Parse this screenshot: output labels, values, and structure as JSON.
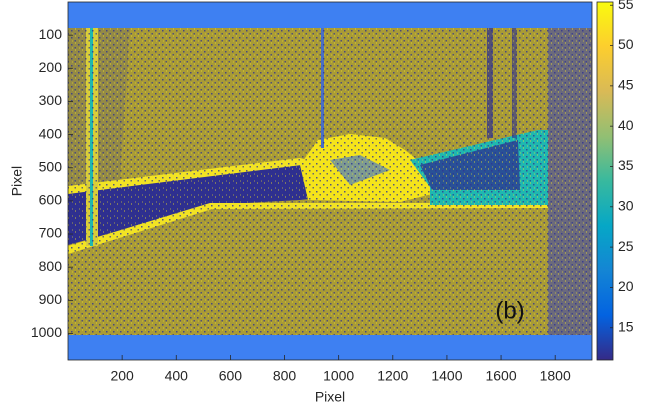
{
  "chart_data": {
    "type": "image",
    "xlabel": "Pixel",
    "ylabel": "Pixel",
    "xlim": [
      0,
      1936
    ],
    "ylim": [
      1080,
      0
    ],
    "xticks": [
      200,
      400,
      600,
      800,
      1000,
      1200,
      1400,
      1600,
      1800
    ],
    "yticks": [
      100,
      200,
      300,
      400,
      500,
      600,
      700,
      800,
      900,
      1000
    ],
    "colorbar": {
      "clim": [
        11,
        55.4
      ],
      "ticks": [
        15,
        20,
        25,
        30,
        35,
        40,
        45,
        50,
        55
      ],
      "colormap": "parula"
    },
    "annotation": "(b)"
  }
}
